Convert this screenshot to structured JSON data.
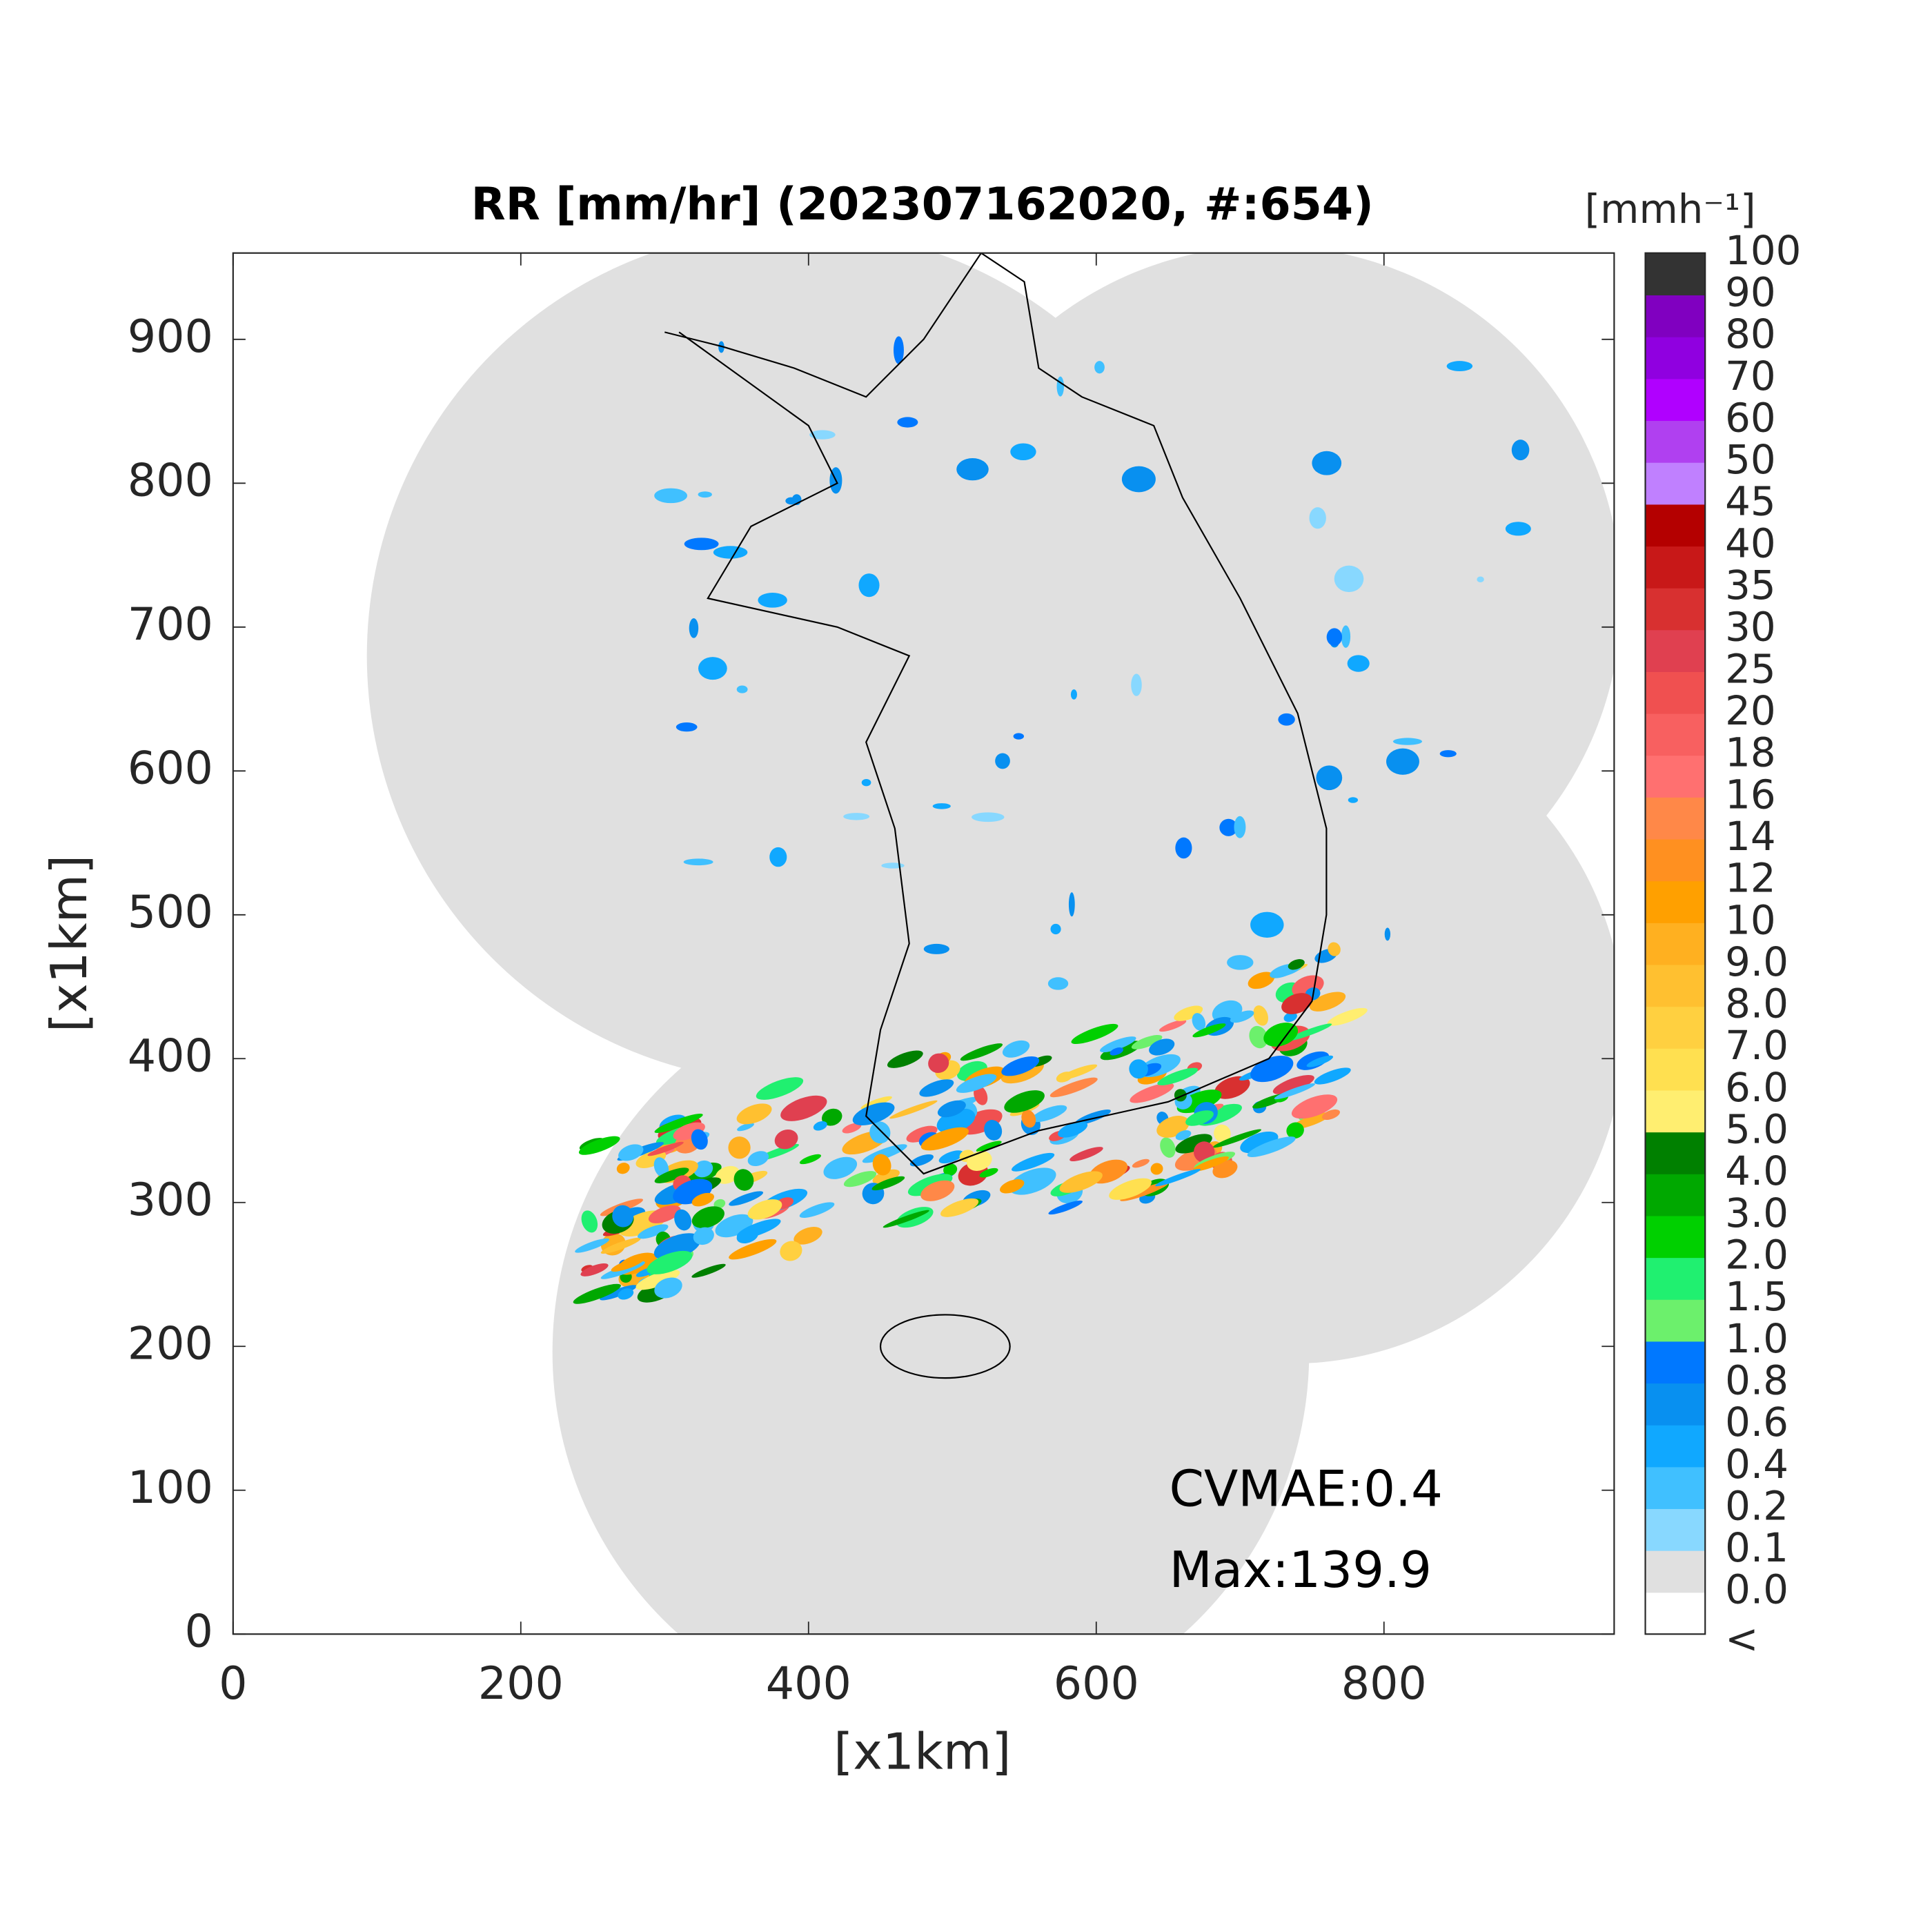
{
  "chart_data": {
    "type": "radar-map",
    "title": "RR [mm/hr] (202307162020, #:654)",
    "xlabel": "[x1km]",
    "ylabel": "[x1km]",
    "xlim": [
      0,
      960
    ],
    "ylim": [
      0,
      960
    ],
    "xticks": [
      0,
      200,
      400,
      600,
      800
    ],
    "yticks": [
      0,
      100,
      200,
      300,
      400,
      500,
      600,
      700,
      800,
      900
    ],
    "grid": false,
    "annotations": [
      "CVMAE:0.4",
      "Max:139.9"
    ],
    "colorbar": {
      "label": "[mmh⁻¹]",
      "ticks": [
        "<",
        "0.0",
        "0.1",
        "0.2",
        "0.4",
        "0.6",
        "0.8",
        "1.0",
        "1.5",
        "2.0",
        "3.0",
        "4.0",
        "5.0",
        "6.0",
        "7.0",
        "8.0",
        "9.0",
        "10",
        "12",
        "14",
        "16",
        "18",
        "20",
        "25",
        "30",
        "35",
        "40",
        "45",
        "50",
        "60",
        "70",
        "80",
        "90",
        "100"
      ],
      "colors": [
        "#ffffff",
        "#e0e0e0",
        "#88d8ff",
        "#40c0ff",
        "#10a8ff",
        "#0890f0",
        "#0078ff",
        "#6cf06c",
        "#20f070",
        "#00d000",
        "#00a800",
        "#008000",
        "#ffee70",
        "#ffe050",
        "#ffd040",
        "#ffc030",
        "#ffb020",
        "#ffa000",
        "#ff9020",
        "#ff8848",
        "#ff7070",
        "#f86060",
        "#f05050",
        "#e04050",
        "#d83030",
        "#c81818",
        "#b40000",
        "#c080ff",
        "#b040f0",
        "#b000ff",
        "#9000e0",
        "#8000c0",
        "#333333"
      ]
    }
  }
}
